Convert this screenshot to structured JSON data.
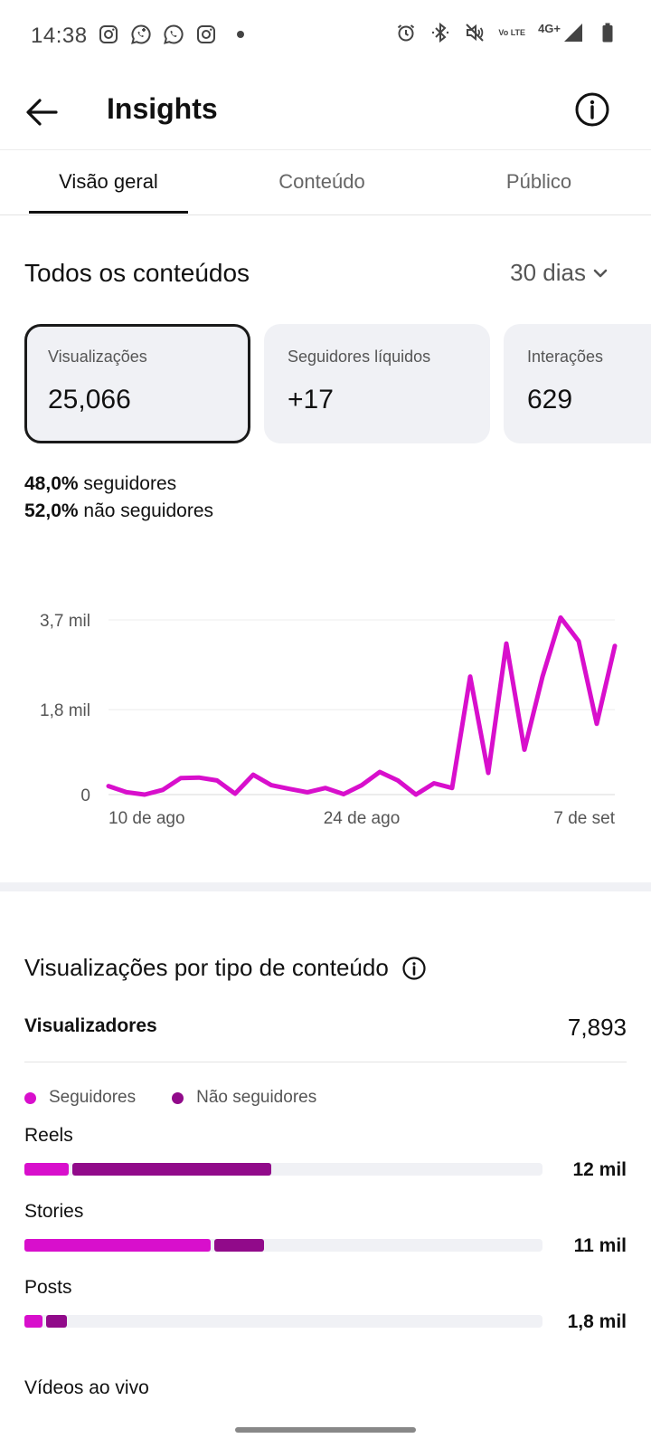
{
  "status_bar": {
    "time": "14:38",
    "left_icons": [
      "instagram-icon",
      "whatsapp-business-icon",
      "whatsapp-icon",
      "instagram-icon"
    ],
    "right_icons": [
      "alarm-icon",
      "bluetooth-icon",
      "mute-icon",
      "volte-icon",
      "signal-icon",
      "battery-icon"
    ],
    "volte_text": "Vo LTE",
    "network": "4G+"
  },
  "header": {
    "title": "Insights"
  },
  "tabs": [
    {
      "label": "Visão geral",
      "active": true
    },
    {
      "label": "Conteúdo",
      "active": false
    },
    {
      "label": "Público",
      "active": false
    }
  ],
  "overview": {
    "title": "Todos os conteúdos",
    "range": "30 dias",
    "cards": [
      {
        "label": "Visualizações",
        "value": "25,066",
        "selected": true
      },
      {
        "label": "Seguidores líquidos",
        "value": "+17",
        "selected": false
      },
      {
        "label": "Interações",
        "value": "629",
        "selected": false
      }
    ],
    "followers_pct": "48,0%",
    "followers_label": "seguidores",
    "nonfollowers_pct": "52,0%",
    "nonfollowers_label": "não seguidores"
  },
  "chart_data": {
    "type": "line",
    "y_tick_labels": [
      "3,7 mil",
      "1,8 mil",
      "0"
    ],
    "y_tick_values": [
      3700,
      1800,
      0
    ],
    "x_tick_labels": [
      "10 de ago",
      "24 de ago",
      "7 de set"
    ],
    "ylim": [
      0,
      3700
    ],
    "grid": true,
    "color": "#d80fcc",
    "values": [
      180,
      50,
      0,
      100,
      350,
      360,
      300,
      20,
      420,
      200,
      120,
      50,
      140,
      10,
      200,
      480,
      300,
      0,
      240,
      140,
      2500,
      460,
      3200,
      950,
      2500,
      3750,
      3250,
      1500,
      3150
    ]
  },
  "content_type": {
    "title": "Visualizações por tipo de conteúdo",
    "viewers_label": "Visualizadores",
    "viewers_value": "7,893",
    "legend": [
      {
        "label": "Seguidores",
        "color": "#d80fcc"
      },
      {
        "label": "Não seguidores",
        "color": "#910a8a"
      }
    ],
    "rows": [
      {
        "name": "Reels",
        "value": "12 mil",
        "followers_fraction": 0.085,
        "nonfollowers_fraction": 0.385
      },
      {
        "name": "Stories",
        "value": "11 mil",
        "followers_fraction": 0.36,
        "nonfollowers_fraction": 0.095
      },
      {
        "name": "Posts",
        "value": "1,8 mil",
        "followers_fraction": 0.035,
        "nonfollowers_fraction": 0.04
      }
    ],
    "bottom_label": "Vídeos ao vivo"
  }
}
